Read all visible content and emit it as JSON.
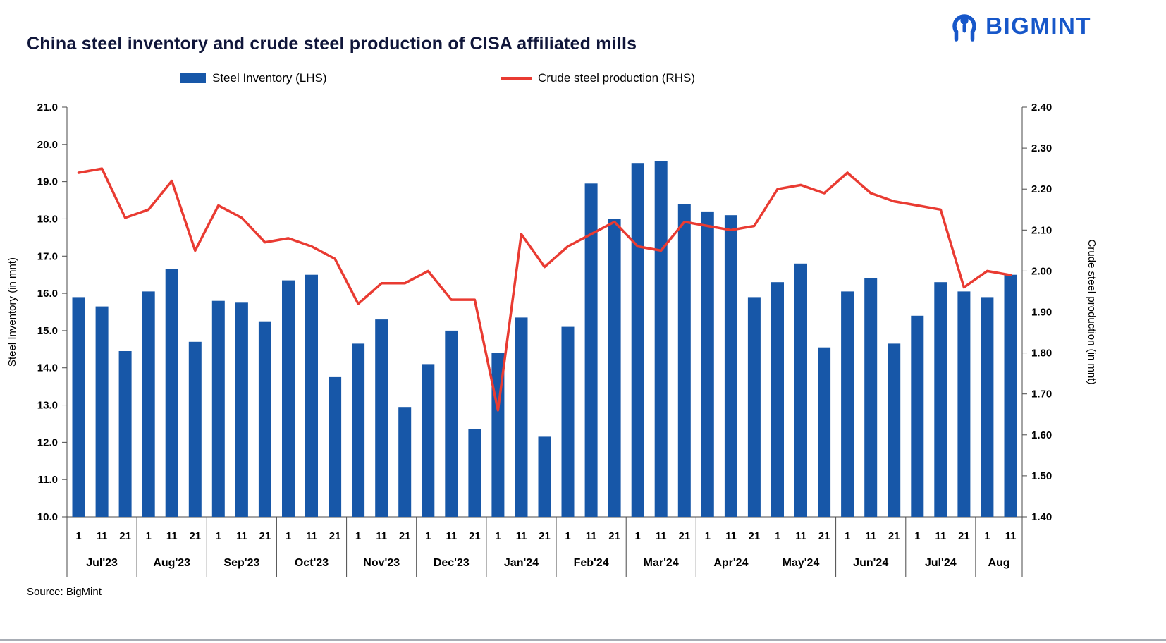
{
  "header": {
    "title": "China steel inventory and crude steel production of CISA affiliated mills",
    "logo_text": "BIGMINT"
  },
  "legend": [
    {
      "label": "Steel Inventory (LHS)",
      "type": "bar",
      "color": "#1757a8"
    },
    {
      "label": "Crude steel production (RHS)",
      "type": "line",
      "color": "#e93b32"
    }
  ],
  "footer": {
    "source": "Source: BigMint"
  },
  "colors": {
    "bar": "#1757a8",
    "line": "#e93b32",
    "brand": "#1757c9",
    "title": "#10163a"
  },
  "chart_data": {
    "type": "bar",
    "title": "China steel inventory and crude steel production of CISA affiliated mills",
    "ylabel_left": "Steel Inventory (in mnt)",
    "ylabel_right": "Crude steel production (in mnt)",
    "left_axis": {
      "min": 10.0,
      "max": 21.0,
      "step": 1.0,
      "decimals": 1
    },
    "right_axis": {
      "min": 1.4,
      "max": 2.4,
      "step": 0.1,
      "decimals": 2
    },
    "grid": "off",
    "legend_position": "top",
    "groups": [
      {
        "month": "Jul'23",
        "ticks": [
          "1",
          "11",
          "21"
        ]
      },
      {
        "month": "Aug'23",
        "ticks": [
          "1",
          "11",
          "21"
        ]
      },
      {
        "month": "Sep'23",
        "ticks": [
          "1",
          "11",
          "21"
        ]
      },
      {
        "month": "Oct'23",
        "ticks": [
          "1",
          "11",
          "21"
        ]
      },
      {
        "month": "Nov'23",
        "ticks": [
          "1",
          "11",
          "21"
        ]
      },
      {
        "month": "Dec'23",
        "ticks": [
          "1",
          "11",
          "21"
        ]
      },
      {
        "month": "Jan'24",
        "ticks": [
          "1",
          "11",
          "21"
        ]
      },
      {
        "month": "Feb'24",
        "ticks": [
          "1",
          "11",
          "21"
        ]
      },
      {
        "month": "Mar'24",
        "ticks": [
          "1",
          "11",
          "21"
        ]
      },
      {
        "month": "Apr'24",
        "ticks": [
          "1",
          "11",
          "21"
        ]
      },
      {
        "month": "May'24",
        "ticks": [
          "1",
          "11",
          "21"
        ]
      },
      {
        "month": "Jun'24",
        "ticks": [
          "1",
          "11",
          "21"
        ]
      },
      {
        "month": "Jul'24",
        "ticks": [
          "1",
          "11",
          "21"
        ]
      },
      {
        "month": "Aug",
        "ticks": [
          "1",
          "11"
        ]
      }
    ],
    "series": [
      {
        "name": "Steel Inventory (LHS)",
        "type": "bar",
        "axis": "left",
        "color": "#1757a8",
        "values": [
          15.9,
          15.65,
          14.45,
          16.05,
          16.65,
          14.7,
          15.8,
          15.75,
          15.25,
          16.35,
          16.5,
          13.75,
          14.65,
          15.3,
          12.95,
          14.1,
          15.0,
          12.35,
          14.4,
          15.35,
          12.15,
          15.1,
          18.95,
          18.0,
          19.5,
          19.55,
          18.4,
          18.2,
          18.1,
          15.9,
          16.3,
          16.8,
          14.55,
          16.05,
          16.4,
          14.65,
          15.4,
          16.3,
          16.05,
          15.9,
          16.5
        ]
      },
      {
        "name": "Crude steel production (RHS)",
        "type": "line",
        "axis": "right",
        "color": "#e93b32",
        "values": [
          2.24,
          2.25,
          2.13,
          2.15,
          2.22,
          2.05,
          2.16,
          2.13,
          2.07,
          2.08,
          2.06,
          2.03,
          1.92,
          1.97,
          1.97,
          2.0,
          1.93,
          1.93,
          1.66,
          2.09,
          2.01,
          2.06,
          2.09,
          2.12,
          2.06,
          2.05,
          2.12,
          2.11,
          2.1,
          2.11,
          2.2,
          2.21,
          2.19,
          2.24,
          2.19,
          2.17,
          2.16,
          2.15,
          1.96,
          2.0,
          1.99
        ]
      }
    ]
  }
}
